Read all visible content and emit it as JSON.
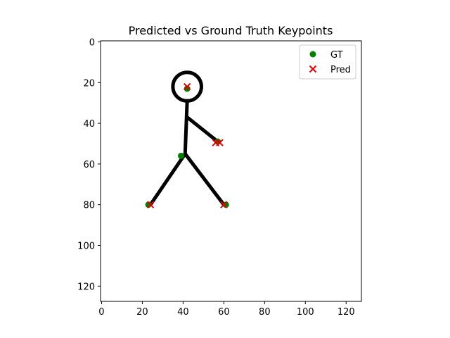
{
  "chart_data": {
    "type": "scatter",
    "title": "Predicted vs Ground Truth Keypoints",
    "xlabel": "",
    "ylabel": "",
    "xlim": [
      -0.5,
      127.5
    ],
    "ylim": [
      127.5,
      -0.5
    ],
    "y_inverted": true,
    "xticks": [
      0,
      20,
      40,
      60,
      80,
      100,
      120
    ],
    "yticks": [
      0,
      20,
      40,
      60,
      80,
      100,
      120
    ],
    "grid": false,
    "legend_position": "top-right",
    "background_image": {
      "description": "stick figure drawn in black on a white 128x128 image",
      "color": "#000000",
      "head": {
        "cx": 42,
        "cy": 22,
        "r": 7
      },
      "segments": [
        {
          "from": [
            42,
            29
          ],
          "to": [
            41,
            55
          ]
        },
        {
          "from": [
            42,
            37
          ],
          "to": [
            57,
            49
          ]
        },
        {
          "from": [
            41,
            55
          ],
          "to": [
            24,
            80
          ]
        },
        {
          "from": [
            41,
            55
          ],
          "to": [
            60,
            80
          ]
        }
      ]
    },
    "series": [
      {
        "name": "GT",
        "marker": "circle",
        "color": "#008000",
        "points": [
          {
            "x": 42,
            "y": 23
          },
          {
            "x": 57,
            "y": 49
          },
          {
            "x": 39,
            "y": 56
          },
          {
            "x": 23,
            "y": 80
          },
          {
            "x": 61,
            "y": 80
          }
        ]
      },
      {
        "name": "Pred",
        "marker": "x",
        "color": "#dd0000",
        "points": [
          {
            "x": 42,
            "y": 22
          },
          {
            "x": 56,
            "y": 49.5
          },
          {
            "x": 58,
            "y": 49.5
          },
          {
            "x": 24,
            "y": 80
          },
          {
            "x": 60,
            "y": 80
          }
        ]
      }
    ]
  }
}
